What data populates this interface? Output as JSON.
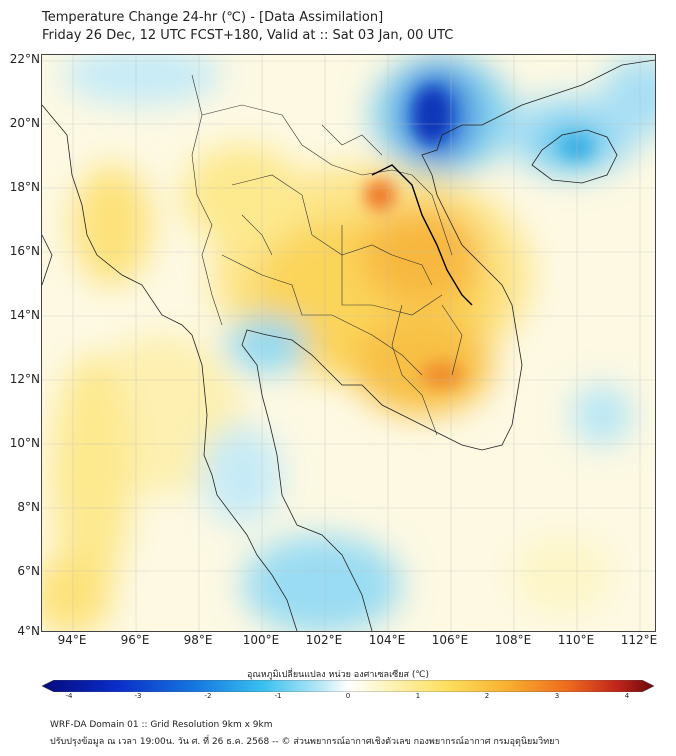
{
  "header": {
    "line1": "Temperature Change 24-hr (℃) - [Data Assimilation]",
    "line2": "Friday 26 Dec, 12 UTC FCST+180, Valid at :: Sat 03 Jan, 00 UTC"
  },
  "map": {
    "lat_labels": [
      "22°N",
      "20°N",
      "18°N",
      "16°N",
      "14°N",
      "12°N",
      "10°N",
      "8°N",
      "6°N",
      "4°N"
    ],
    "lon_labels": [
      "94°E",
      "96°E",
      "98°E",
      "100°E",
      "102°E",
      "104°E",
      "106°E",
      "108°E",
      "110°E",
      "112°E"
    ],
    "lat_range": [
      4,
      22
    ],
    "lon_range": [
      93,
      112.5
    ]
  },
  "colorbar": {
    "title": "อุณหภูมิเปลี่ยนแปลง หน่วย องศาเซลเซียส (℃)",
    "tick_labels": [
      "-4",
      "-3",
      "-2",
      "-1",
      "0",
      "1",
      "2",
      "3",
      "4"
    ],
    "range": [
      -4,
      4
    ]
  },
  "footer": {
    "line1": "WRF-DA Domain 01 :: Grid Resolution 9km x 9km",
    "line2": "ปรับปรุงข้อมูล ณ เวลา 19:00น. วัน ศ. ที่ 26 ธ.ค. 2568 -- © ส่วนพยากรณ์อากาศเชิงตัวเลข กองพยากรณ์อากาศ กรมอุตุนิยมวิทยา"
  }
}
